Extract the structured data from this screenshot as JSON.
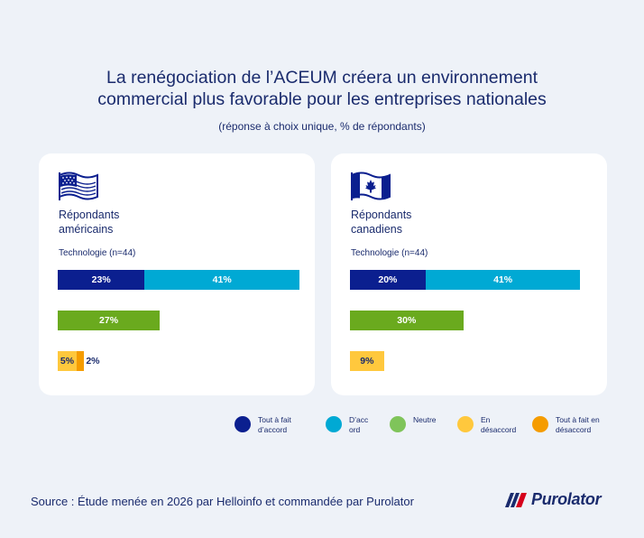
{
  "header": {
    "title_line1": "La renégociation de l’ACEUM créera un environnement",
    "title_line2": "commercial plus favorable pour les entreprises nationales",
    "subtitle": "(réponse à choix unique, % de répondants)"
  },
  "panels": {
    "us": {
      "flag_icon": "us-flag-icon",
      "group_line1": "Répondants",
      "group_line2": "américains",
      "sector": "Technologie (n=44)"
    },
    "ca": {
      "flag_icon": "canada-flag-icon",
      "group_line1": "Répondants",
      "group_line2": "canadiens",
      "sector": "Technologie (n=44)"
    }
  },
  "legend": [
    {
      "line1": "Tout à fait",
      "line2": "d’accord",
      "color": "#0b1f8f"
    },
    {
      "line1": "D’acc",
      "line2": "ord",
      "color": "#00a9d4"
    },
    {
      "line1": "Neutre",
      "line2": "",
      "color": "#7fc45a"
    },
    {
      "line1": "En",
      "line2": "désaccord",
      "color": "#ffc83d"
    },
    {
      "line1": "Tout à fait en",
      "line2": "désaccord",
      "color": "#f59c00"
    }
  ],
  "footer": {
    "source": "Source : Étude menée en 2026 par Helloinfo et commandée par Purolator",
    "logo_text": "Purolator"
  },
  "chart_data": {
    "type": "bar",
    "orientation": "horizontal",
    "stacked": true,
    "unit": "%",
    "colors": {
      "tout_a_fait_accord": "#0b1f8f",
      "d_accord": "#00a9d4",
      "neutre": "#6aaa1e",
      "en_desaccord": "#ffc83d",
      "tout_a_fait_desaccord": "#f59c00"
    },
    "panels": [
      {
        "id": "us",
        "rows": [
          [
            {
              "key": "tout_a_fait_accord",
              "value": 23,
              "label": "23%"
            },
            {
              "key": "d_accord",
              "value": 41,
              "label": "41%"
            }
          ],
          [
            {
              "key": "neutre",
              "value": 27,
              "label": "27%"
            }
          ],
          [
            {
              "key": "en_desaccord",
              "value": 5,
              "label": "5%"
            },
            {
              "key": "tout_a_fait_desaccord",
              "value": 2,
              "label": "2%",
              "label_outside": true
            }
          ]
        ]
      },
      {
        "id": "ca",
        "rows": [
          [
            {
              "key": "tout_a_fait_accord",
              "value": 20,
              "label": "20%"
            },
            {
              "key": "d_accord",
              "value": 41,
              "label": "41%"
            }
          ],
          [
            {
              "key": "neutre",
              "value": 30,
              "label": "30%"
            }
          ],
          [
            {
              "key": "en_desaccord",
              "value": 9,
              "label": "9%"
            }
          ]
        ]
      }
    ]
  }
}
